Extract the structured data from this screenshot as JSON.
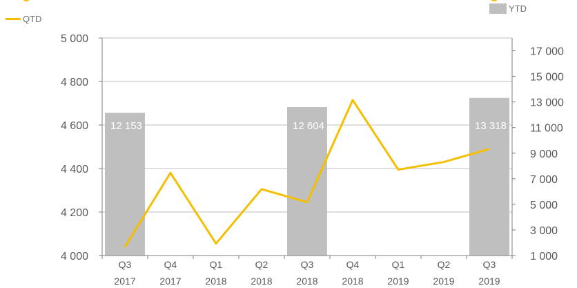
{
  "legend": {
    "line_label": "QTD",
    "bar_label": "YTD"
  },
  "colors": {
    "line": "#f5be00",
    "bar": "#bfbfbf",
    "axis": "#7f7f7f",
    "text": "#595959"
  },
  "chart_data": {
    "type": "bar",
    "categories": [
      [
        "Q3",
        "2017"
      ],
      [
        "Q4",
        "2017"
      ],
      [
        "Q1",
        "2018"
      ],
      [
        "Q2",
        "2018"
      ],
      [
        "Q3",
        "2018"
      ],
      [
        "Q4",
        "2018"
      ],
      [
        "Q1",
        "2019"
      ],
      [
        "Q2",
        "2019"
      ],
      [
        "Q3",
        "2019"
      ]
    ],
    "series": [
      {
        "name": "YTD",
        "type": "bar",
        "axis": "right",
        "values": [
          12153,
          null,
          null,
          null,
          12604,
          null,
          null,
          null,
          13318
        ],
        "labels": [
          "12 153",
          "",
          "",
          "",
          "12 604",
          "",
          "",
          "",
          "13 318"
        ]
      },
      {
        "name": "QTD",
        "type": "line",
        "axis": "left",
        "values": [
          4040,
          4380,
          4055,
          4305,
          4245,
          4715,
          4395,
          4430,
          4490
        ]
      }
    ],
    "y_left": {
      "range": [
        4000,
        5000
      ],
      "ticks": [
        4000,
        4200,
        4400,
        4600,
        4800,
        5000
      ],
      "tick_labels": [
        "4 000",
        "4 200",
        "4 400",
        "4 600",
        "4 800",
        "5 000"
      ]
    },
    "y_right": {
      "range": [
        1000,
        18000
      ],
      "ticks": [
        1000,
        3000,
        5000,
        7000,
        9000,
        11000,
        13000,
        15000,
        17000
      ],
      "tick_labels": [
        "1 000",
        "3 000",
        "5 000",
        "7 000",
        "9 000",
        "11 000",
        "13 000",
        "15 000",
        "17 000"
      ]
    },
    "grid": true,
    "legend_position": "top"
  }
}
